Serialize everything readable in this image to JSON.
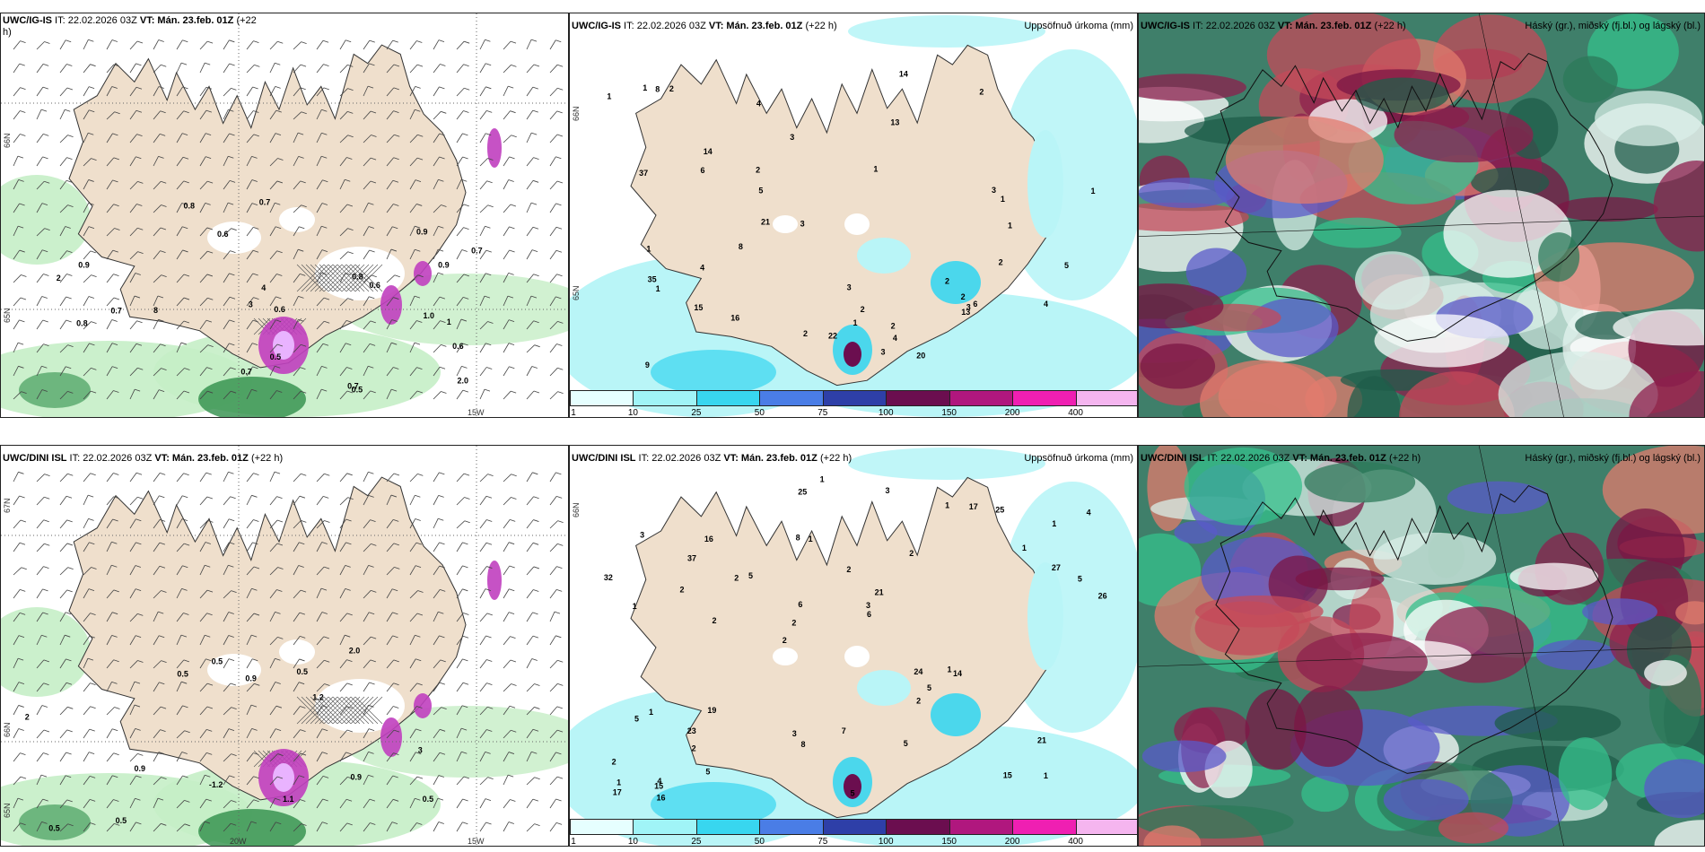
{
  "panels": [
    {
      "id": "p1",
      "header_model": "UWC/IG-IS",
      "header_it": " IT: 22.02.2026 03Z ",
      "header_vt": "VT: Mán. 23.feb. 01Z",
      "header_lead": " (+22",
      "header_wrap": "h)",
      "grid_labels": [
        "66N",
        "65N",
        "15W"
      ],
      "numbers": [
        "0.6",
        "1.0",
        "0.9",
        "0.9",
        "0.6",
        "0.7",
        "0.7",
        "0.7",
        "0.6",
        "0.7",
        "0.7",
        "0.8",
        "0.6",
        "0.5",
        "0.5",
        "0.9",
        "0.8",
        "0.8",
        "2.0",
        "2",
        "3",
        "4",
        "1",
        "8"
      ]
    },
    {
      "id": "p2",
      "header_model": "UWC/IG-IS",
      "header_it": " IT: 22.02.2026 03Z ",
      "header_vt": "VT: Mán. 23.feb. 01Z",
      "header_lead": " (+22 h)",
      "right_title": "Uppsöfnuð úrkoma (mm)",
      "grid_labels": [
        "66N",
        "65N"
      ],
      "numbers": [
        "2",
        "2",
        "1",
        "1",
        "1",
        "1",
        "1",
        "1",
        "3",
        "14",
        "4",
        "4",
        "22",
        "20",
        "2",
        "4",
        "2",
        "3",
        "5",
        "1",
        "2",
        "1",
        "6",
        "5",
        "2",
        "16",
        "14",
        "3",
        "4",
        "2",
        "1",
        "2",
        "2",
        "3",
        "13",
        "3",
        "8",
        "6",
        "3",
        "8",
        "9",
        "15",
        "21",
        "35",
        "37",
        "13"
      ]
    },
    {
      "id": "p3",
      "header_model": "UWC/IG-IS",
      "header_it": " IT: 22.02.2026 03Z ",
      "header_vt": "VT: Mán. 23.feb. 01Z",
      "header_lead": " (+22 h)",
      "right_title": "Háský (gr.), miðský (fj.bl.) og lágský (bl.)"
    },
    {
      "id": "p4",
      "header_model": "UWC/DINI ISL",
      "header_it": " IT: 22.02.2026 03Z ",
      "header_vt": "VT: Mán. 23.feb. 01Z",
      "header_lead": " (+22 h)",
      "grid_labels": [
        "67N",
        "66N",
        "65N",
        "20W",
        "15W"
      ],
      "numbers": [
        "-1.2",
        "0.5",
        "0.5",
        "0.9",
        "0.5",
        "2.0",
        "3",
        "0.5",
        "0.5",
        "1.1",
        "0.5",
        "2",
        "0.9",
        "1.2",
        "0.9"
      ]
    },
    {
      "id": "p5",
      "header_model": "UWC/DINI ISL",
      "header_it": " IT: 22.02.2026 03Z ",
      "header_vt": "VT: Mán. 23.feb. 01Z",
      "header_lead": " (+22 h)",
      "right_title": "Uppsöfnuð úrkoma (mm)",
      "grid_labels": [
        "66N"
      ],
      "numbers": [
        "1",
        "1",
        "1",
        "2",
        "2",
        "4",
        "8",
        "2",
        "1",
        "5",
        "2",
        "2",
        "1",
        "21",
        "14",
        "3",
        "25",
        "26",
        "24",
        "27",
        "2",
        "3",
        "6",
        "16",
        "1",
        "19",
        "15",
        "21",
        "1",
        "5",
        "2",
        "2",
        "2",
        "5",
        "5",
        "3",
        "1",
        "8",
        "6",
        "5",
        "1",
        "4",
        "5",
        "5",
        "23",
        "16",
        "17",
        "7",
        "25",
        "1",
        "2",
        "32",
        "37",
        "17",
        "15",
        "3"
      ]
    },
    {
      "id": "p6",
      "header_model": "UWC/DINI ISL",
      "header_it": " IT: 22.02.2026 03Z ",
      "header_vt": "VT: Mán. 23.feb. 01Z",
      "header_lead": " (+22 h)",
      "right_title": "Háský (gr.), miðský (fj.bl.) og lágský (bl.)"
    }
  ],
  "precip_colorbar": {
    "ticks": [
      "1",
      "10",
      "25",
      "50",
      "75",
      "100",
      "150",
      "200",
      "400"
    ],
    "colors": [
      "#e6ffff",
      "#a0f4f7",
      "#38d6ef",
      "#4a7de6",
      "#2e3fa8",
      "#6b0e4f",
      "#b0177e",
      "#ef1fb2",
      "#f5b5ef"
    ]
  },
  "colors": {
    "land": "#efdfcc",
    "sea_ice_free": "#ffffff",
    "snow": "#ffffff",
    "precip_light": "#b9f5f7",
    "precip_mid": "#38d6ef",
    "green_light": "#c5eec6",
    "green_dark": "#2f8f4a",
    "magenta": "#c03fbf",
    "cloud_high": "#2c7a5a",
    "cloud_mid": "#7b1544",
    "cloud_low": "#5959c9"
  }
}
